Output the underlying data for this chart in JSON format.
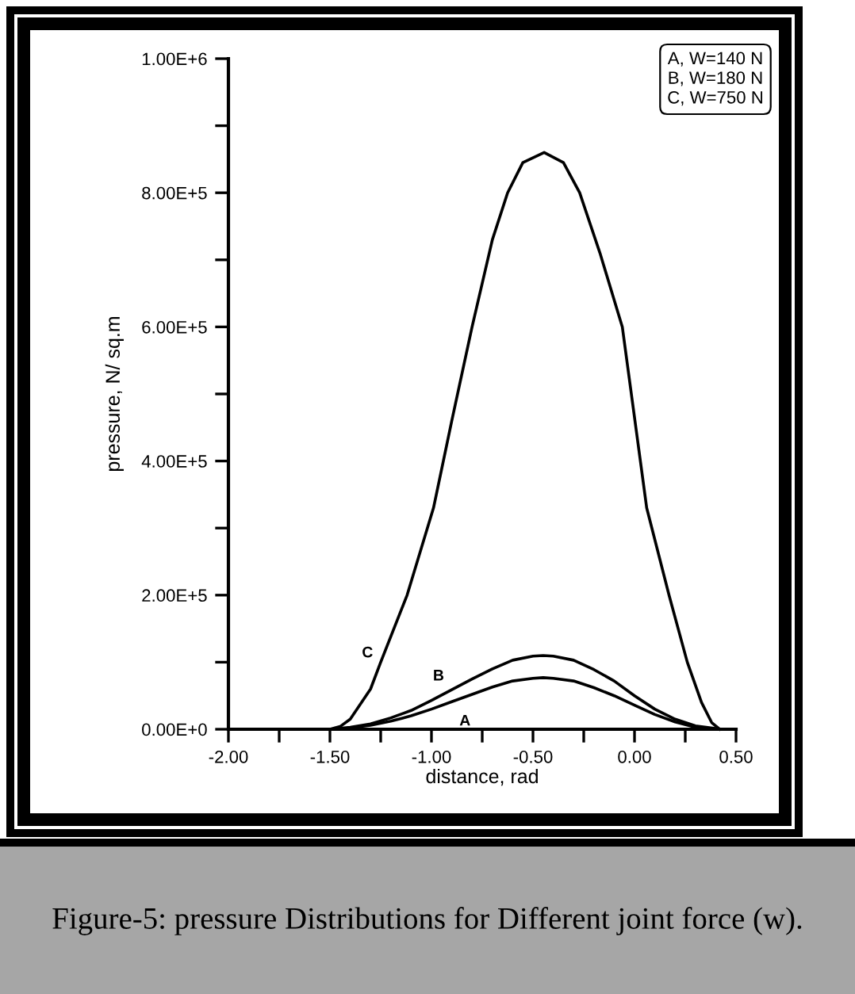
{
  "chart_data": {
    "type": "line",
    "xlabel": "distance, rad",
    "ylabel": "pressure, N/ sq.m",
    "series": [
      {
        "name": "A",
        "color": "#000000",
        "x": [
          -1.47,
          -1.4,
          -1.3,
          -1.2,
          -1.1,
          -1.0,
          -0.9,
          -0.8,
          -0.7,
          -0.6,
          -0.5,
          -0.45,
          -0.4,
          -0.3,
          -0.2,
          -0.1,
          0.0,
          0.1,
          0.2,
          0.3,
          0.4
        ],
        "values": [
          0,
          2000,
          6000,
          12000,
          20000,
          30000,
          41000,
          52000,
          63000,
          72000,
          76000,
          77000,
          76000,
          72000,
          62000,
          50000,
          36000,
          22000,
          11000,
          3000,
          0
        ]
      },
      {
        "name": "B",
        "color": "#000000",
        "x": [
          -1.5,
          -1.4,
          -1.3,
          -1.2,
          -1.1,
          -1.0,
          -0.9,
          -0.8,
          -0.7,
          -0.6,
          -0.5,
          -0.45,
          -0.4,
          -0.3,
          -0.2,
          -0.1,
          0.0,
          0.1,
          0.2,
          0.3,
          0.43
        ],
        "values": [
          0,
          3000,
          8000,
          17000,
          28000,
          43000,
          59000,
          75000,
          90000,
          103000,
          109000,
          110000,
          109000,
          103000,
          89000,
          72000,
          50000,
          30000,
          15000,
          5000,
          0
        ]
      },
      {
        "name": "C",
        "color": "#000000",
        "x": [
          -1.5,
          -1.45,
          -1.4,
          -1.3,
          -1.25,
          -1.12,
          -0.99,
          -0.9,
          -0.8,
          -0.7,
          -0.625,
          -0.55,
          -0.445,
          -0.35,
          -0.27,
          -0.17,
          -0.06,
          0.06,
          0.17,
          0.26,
          0.33,
          0.38,
          0.42
        ],
        "values": [
          0,
          4000,
          15000,
          60000,
          100000,
          200000,
          330000,
          460000,
          600000,
          730000,
          800000,
          845000,
          860000,
          845000,
          800000,
          710000,
          600000,
          330000,
          200000,
          100000,
          40000,
          10000,
          0
        ]
      }
    ],
    "xlim": [
      -2.0,
      0.5
    ],
    "xticks": [
      {
        "value": -2.0,
        "label": "-2.00"
      },
      {
        "value": -1.75,
        "label": null
      },
      {
        "value": -1.5,
        "label": "-1.50"
      },
      {
        "value": -1.25,
        "label": null
      },
      {
        "value": -1.0,
        "label": "-1.00"
      },
      {
        "value": -0.75,
        "label": null
      },
      {
        "value": -0.5,
        "label": "-0.50"
      },
      {
        "value": -0.25,
        "label": null
      },
      {
        "value": 0.0,
        "label": "0.00"
      },
      {
        "value": 0.25,
        "label": null
      },
      {
        "value": 0.5,
        "label": "0.50"
      }
    ],
    "ylim": [
      0,
      1000000
    ],
    "yticks": [
      {
        "value": 0,
        "label": "0.00E+0"
      },
      {
        "value": 100000,
        "label": null
      },
      {
        "value": 200000,
        "label": "2.00E+5"
      },
      {
        "value": 300000,
        "label": null
      },
      {
        "value": 400000,
        "label": "4.00E+5"
      },
      {
        "value": 500000,
        "label": null
      },
      {
        "value": 600000,
        "label": "6.00E+5"
      },
      {
        "value": 700000,
        "label": null
      },
      {
        "value": 800000,
        "label": "8.00E+5"
      },
      {
        "value": 900000,
        "label": null
      },
      {
        "value": 1000000,
        "label": "1.00E+6"
      }
    ],
    "grid": false,
    "marker": "none",
    "line_style": "solid",
    "annotations": [
      "A, W=140 N",
      "B, W=180 N",
      "C, W=750 N",
      "Figure-5: pressure Distributions for Different joint force (w)."
    ]
  }
}
